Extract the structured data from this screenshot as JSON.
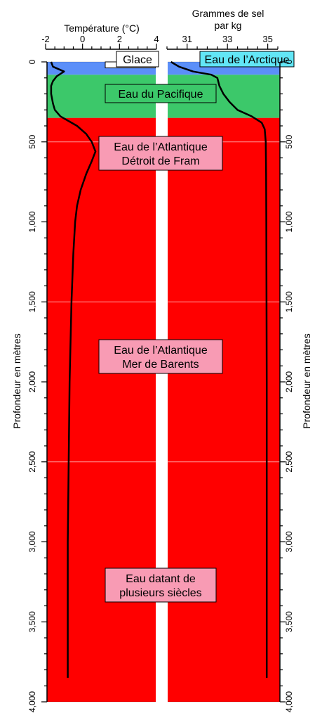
{
  "chart_data": {
    "type": "line",
    "temperature_axis": {
      "title": "Température (°C)",
      "ticks": [
        -2,
        0,
        2,
        4
      ],
      "tick_labels": [
        "-2",
        "0",
        "2",
        "4"
      ],
      "range": [
        -2,
        4
      ]
    },
    "salinity_axis": {
      "title_line1": "Grammes de sel",
      "title_line2": "par kg",
      "ticks": [
        31,
        33,
        35
      ],
      "tick_labels": [
        "31",
        "33",
        "35"
      ],
      "range": [
        30,
        35.5
      ]
    },
    "depth_axis": {
      "ylabel": "Profondeur en mètres",
      "range": [
        0,
        4000
      ],
      "ticks": [
        0,
        500,
        1000,
        1500,
        2000,
        2500,
        3000,
        3500,
        4000
      ],
      "tick_labels": [
        "0",
        "500",
        "1,000",
        "1,500",
        "2,000",
        "2,500",
        "3,000",
        "3,500",
        "4,000"
      ]
    },
    "layers": [
      {
        "key": "ice",
        "label": "Glace",
        "top": 0,
        "bottom": 20,
        "color": "#ffffff"
      },
      {
        "key": "arctic",
        "label": "Eau de l’Arctique",
        "top": 0,
        "bottom": 80,
        "color": "#5b8ff9"
      },
      {
        "key": "pacific",
        "label": "Eau du Pacifique",
        "top": 80,
        "bottom": 350,
        "color": "#3cc86a"
      },
      {
        "key": "atlantic",
        "label": "",
        "top": 350,
        "bottom": 4000,
        "color": "#ff0000"
      }
    ],
    "layer_labels": {
      "ice": "Glace",
      "arctic": "Eau de l’Arctique",
      "pacific": "Eau du Pacifique",
      "fram_line1": "Eau de l’Atlantique",
      "fram_line2": "Détroit de Fram",
      "barents_line1": "Eau de l’Atlantique",
      "barents_line2": "Mer de Barents",
      "old_line1": "Eau datant de",
      "old_line2": "plusieurs siècles"
    },
    "series": [
      {
        "key": "temperature",
        "points": [
          [
            0,
            -1.7
          ],
          [
            30,
            -1.6
          ],
          [
            60,
            -1.0
          ],
          [
            90,
            -1.4
          ],
          [
            120,
            -1.6
          ],
          [
            150,
            -1.7
          ],
          [
            200,
            -1.7
          ],
          [
            260,
            -1.6
          ],
          [
            300,
            -1.5
          ],
          [
            340,
            -1.2
          ],
          [
            400,
            -0.3
          ],
          [
            450,
            0.2
          ],
          [
            500,
            0.5
          ],
          [
            560,
            0.7
          ],
          [
            620,
            0.5
          ],
          [
            700,
            0.2
          ],
          [
            800,
            -0.1
          ],
          [
            900,
            -0.3
          ],
          [
            1000,
            -0.4
          ],
          [
            1200,
            -0.5
          ],
          [
            1500,
            -0.6
          ],
          [
            2000,
            -0.7
          ],
          [
            2500,
            -0.75
          ],
          [
            3000,
            -0.8
          ],
          [
            3500,
            -0.8
          ],
          [
            3850,
            -0.8
          ]
        ]
      },
      {
        "key": "salinity",
        "points": [
          [
            0,
            30.2
          ],
          [
            30,
            30.6
          ],
          [
            60,
            31.3
          ],
          [
            80,
            32.2
          ],
          [
            100,
            32.5
          ],
          [
            150,
            32.6
          ],
          [
            200,
            32.8
          ],
          [
            250,
            33.1
          ],
          [
            300,
            33.5
          ],
          [
            340,
            34.2
          ],
          [
            380,
            34.7
          ],
          [
            420,
            34.85
          ],
          [
            500,
            34.9
          ],
          [
            700,
            34.92
          ],
          [
            1000,
            34.93
          ],
          [
            2000,
            34.95
          ],
          [
            3000,
            34.95
          ],
          [
            3850,
            34.95
          ]
        ]
      }
    ],
    "legend": "none",
    "grid": false
  }
}
